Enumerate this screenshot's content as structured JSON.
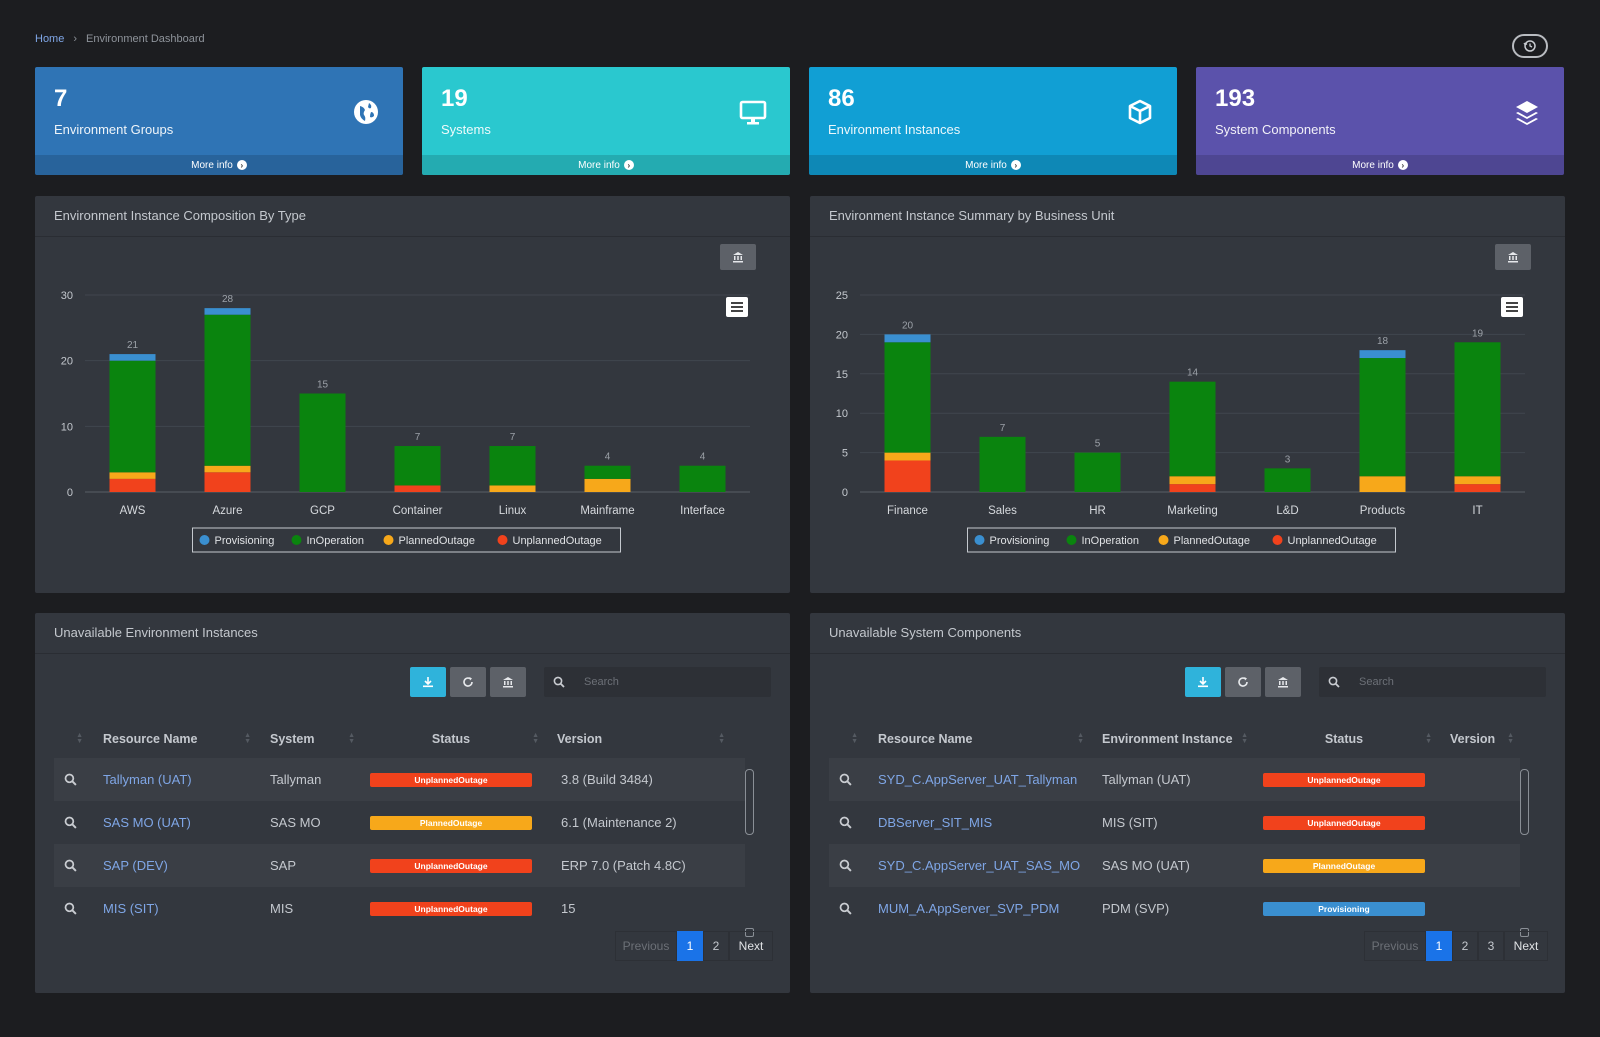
{
  "breadcrumb": {
    "home": "Home",
    "current": "Environment Dashboard"
  },
  "cards": [
    {
      "value": "7",
      "label": "Environment Groups",
      "more": "More info",
      "color": "#2f74b5",
      "icon": "globe-icon"
    },
    {
      "value": "19",
      "label": "Systems",
      "more": "More info",
      "color": "#2ac8cf",
      "icon": "monitor-icon"
    },
    {
      "value": "86",
      "label": "Environment Instances",
      "more": "More info",
      "color": "#119fd4",
      "icon": "cube-icon"
    },
    {
      "value": "193",
      "label": "System Components",
      "more": "More info",
      "color": "#5b52ab",
      "icon": "layers-icon"
    }
  ],
  "colors": {
    "Provisioning": "#3a8fd0",
    "InOperation": "#0a840e",
    "PlannedOutage": "#f7a81a",
    "UnplannedOutage": "#f1421c"
  },
  "charts": {
    "composition": {
      "title": "Environment Instance Composition By Type",
      "legend": [
        "Provisioning",
        "InOperation",
        "PlannedOutage",
        "UnplannedOutage"
      ]
    },
    "business": {
      "title": "Environment Instance Summary by Business Unit",
      "legend": [
        "Provisioning",
        "InOperation",
        "PlannedOutage",
        "UnplannedOutage"
      ]
    }
  },
  "chart_data": [
    {
      "type": "bar",
      "stacked": true,
      "title": "Environment Instance Composition By Type",
      "categories": [
        "AWS",
        "Azure",
        "GCP",
        "Container",
        "Linux",
        "Mainframe",
        "Interface"
      ],
      "totals": [
        21,
        28,
        15,
        7,
        7,
        4,
        4
      ],
      "ylim": [
        0,
        30
      ],
      "yticks": [
        0,
        10,
        20,
        30
      ],
      "legend_position": "bottom",
      "series": [
        {
          "name": "UnplannedOutage",
          "values": [
            2,
            3,
            0,
            1,
            0,
            0,
            0
          ]
        },
        {
          "name": "PlannedOutage",
          "values": [
            1,
            1,
            0,
            0,
            1,
            2,
            0
          ]
        },
        {
          "name": "InOperation",
          "values": [
            17,
            23,
            15,
            6,
            6,
            2,
            4
          ]
        },
        {
          "name": "Provisioning",
          "values": [
            1,
            1,
            0,
            0,
            0,
            0,
            0
          ]
        }
      ]
    },
    {
      "type": "bar",
      "stacked": true,
      "title": "Environment Instance Summary by Business Unit",
      "categories": [
        "Finance",
        "Sales",
        "HR",
        "Marketing",
        "L&D",
        "Products",
        "IT"
      ],
      "totals": [
        20,
        7,
        5,
        14,
        3,
        18,
        19
      ],
      "ylim": [
        0,
        25
      ],
      "yticks": [
        0,
        5,
        10,
        15,
        20,
        25
      ],
      "legend_position": "bottom",
      "series": [
        {
          "name": "UnplannedOutage",
          "values": [
            4,
            0,
            0,
            1,
            0,
            0,
            1
          ]
        },
        {
          "name": "PlannedOutage",
          "values": [
            1,
            0,
            0,
            1,
            0,
            2,
            1
          ]
        },
        {
          "name": "InOperation",
          "values": [
            14,
            7,
            5,
            12,
            3,
            15,
            17
          ]
        },
        {
          "name": "Provisioning",
          "values": [
            1,
            0,
            0,
            0,
            0,
            1,
            0
          ]
        }
      ]
    }
  ],
  "tables": {
    "envInstances": {
      "title": "Unavailable Environment Instances",
      "search_placeholder": "Search",
      "headers": [
        "Resource Name",
        "System",
        "Status",
        "Version"
      ],
      "rows": [
        {
          "name": "Tallyman (UAT)",
          "system": "Tallyman",
          "status": "UnplannedOutage",
          "version": "3.8 (Build 3484)"
        },
        {
          "name": "SAS MO (UAT)",
          "system": "SAS MO",
          "status": "PlannedOutage",
          "version": "6.1 (Maintenance 2)"
        },
        {
          "name": "SAP (DEV)",
          "system": "SAP",
          "status": "UnplannedOutage",
          "version": "ERP 7.0 (Patch 4.8C)"
        },
        {
          "name": "MIS (SIT)",
          "system": "MIS",
          "status": "UnplannedOutage",
          "version": "15"
        }
      ],
      "pager": {
        "prev": "Previous",
        "pages": [
          "1",
          "2"
        ],
        "next": "Next",
        "active": 0
      }
    },
    "sysComponents": {
      "title": "Unavailable System Components",
      "search_placeholder": "Search",
      "headers": [
        "Resource Name",
        "Environment Instance",
        "Status",
        "Version"
      ],
      "rows": [
        {
          "name": "SYD_C.AppServer_UAT_Tallyman",
          "env": "Tallyman (UAT)",
          "status": "UnplannedOutage"
        },
        {
          "name": "DBServer_SIT_MIS",
          "env": "MIS (SIT)",
          "status": "UnplannedOutage"
        },
        {
          "name": "SYD_C.AppServer_UAT_SAS_MO",
          "env": "SAS MO (UAT)",
          "status": "PlannedOutage"
        },
        {
          "name": "MUM_A.AppServer_SVP_PDM",
          "env": "PDM (SVP)",
          "status": "Provisioning"
        }
      ],
      "pager": {
        "prev": "Previous",
        "pages": [
          "1",
          "2",
          "3"
        ],
        "next": "Next",
        "active": 0
      }
    }
  }
}
